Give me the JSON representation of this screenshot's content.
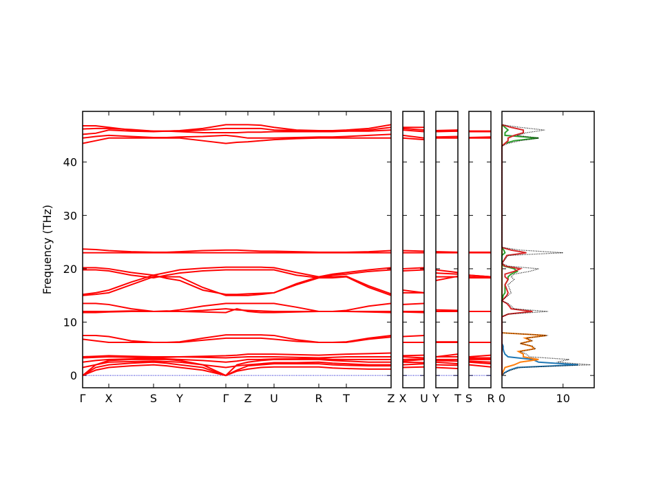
{
  "chart_data": [
    {
      "type": "band",
      "ylabel": "Frequency (THz)",
      "color": "#ff0000",
      "zero_line": true,
      "ylim": [
        -2.3,
        49.5
      ],
      "yticks": [
        0,
        10,
        20,
        30,
        40
      ],
      "xlim": [
        0,
        448
      ],
      "xticks": [
        {
          "value": 0,
          "label": "Γ"
        },
        {
          "value": 38,
          "label": "X"
        },
        {
          "value": 103,
          "label": "S"
        },
        {
          "value": 141,
          "label": "Y"
        },
        {
          "value": 208,
          "label": "Γ"
        },
        {
          "value": 240,
          "label": "Z"
        },
        {
          "value": 278,
          "label": "U"
        },
        {
          "value": 343,
          "label": "R"
        },
        {
          "value": 383,
          "label": "T"
        },
        {
          "value": 448,
          "label": "Z"
        }
      ],
      "x": [
        0,
        19,
        38,
        70.5,
        103,
        122,
        141,
        174.5,
        208,
        224,
        240,
        259,
        278,
        310.5,
        343,
        363,
        383,
        415.5,
        448
      ],
      "bands": [
        [
          0,
          1,
          1.5,
          1.8,
          2,
          1.8,
          1.5,
          1,
          0,
          0.8,
          1.2,
          1.5,
          1.6,
          1.6,
          1.6,
          1.4,
          1.3,
          1.2,
          1.2
        ],
        [
          0,
          1.5,
          2,
          2.3,
          2.5,
          2.3,
          2,
          1.5,
          0,
          1,
          1.8,
          2,
          2.2,
          2.2,
          2.2,
          2,
          1.9,
          1.8,
          1.8
        ],
        [
          0,
          2,
          2.8,
          3,
          3,
          3,
          2.8,
          2,
          0,
          2,
          2.5,
          2.8,
          3,
          3,
          3,
          2.8,
          2.7,
          2.5,
          2.5
        ],
        [
          1.5,
          2,
          2.5,
          2.6,
          2.7,
          2.6,
          2.5,
          2,
          1.5,
          1.8,
          2,
          2.2,
          2.4,
          2.4,
          2.5,
          2.3,
          2.2,
          2,
          2
        ],
        [
          2.5,
          2.8,
          3,
          3.1,
          3.2,
          3.1,
          3,
          2.8,
          2.5,
          2.7,
          3,
          3,
          3.1,
          3.1,
          3.2,
          3,
          3,
          3,
          3
        ],
        [
          3.3,
          3.4,
          3.5,
          3.4,
          3.3,
          3.4,
          3.5,
          3.4,
          3.3,
          3.4,
          3.5,
          3.5,
          3.5,
          3.4,
          3.3,
          3.4,
          3.5,
          3.5,
          3.5
        ],
        [
          3.5,
          3.6,
          3.7,
          3.6,
          3.5,
          3.5,
          3.5,
          3.6,
          3.7,
          3.8,
          4,
          4,
          4,
          3.9,
          3.8,
          3.9,
          4,
          4.1,
          4.2
        ],
        [
          6.8,
          6.5,
          6.2,
          6.2,
          6.2,
          6.2,
          6.2,
          6.6,
          7,
          7,
          7,
          7,
          6.8,
          6.4,
          6.2,
          6.2,
          6.2,
          6.8,
          7.2
        ],
        [
          7.5,
          7.5,
          7.3,
          6.5,
          6.2,
          6.2,
          6.3,
          7,
          7.6,
          7.6,
          7.6,
          7.6,
          7.5,
          6.7,
          6.2,
          6.2,
          6.3,
          7,
          7.5
        ],
        [
          11.8,
          11.8,
          11.9,
          12,
          12,
          12,
          12,
          11.9,
          11.8,
          12.5,
          12,
          11.8,
          11.8,
          11.9,
          12,
          12,
          12,
          11.9,
          11.8
        ],
        [
          12,
          12,
          12,
          12.1,
          12,
          12.1,
          12,
          12.2,
          12.5,
          12.3,
          12.2,
          12.1,
          12,
          12,
          12,
          12,
          12,
          12,
          12
        ],
        [
          13.5,
          13.5,
          13.3,
          12.5,
          12,
          12,
          12.3,
          13,
          13.5,
          13.5,
          13.5,
          13.5,
          13.5,
          12.8,
          12,
          12,
          12.2,
          13,
          13.5
        ],
        [
          15,
          15.2,
          15.5,
          17,
          18.5,
          18.5,
          18.5,
          16.5,
          15,
          15,
          15,
          15.2,
          15.5,
          17,
          18.3,
          18.3,
          18.5,
          16.5,
          15
        ],
        [
          15.2,
          15.5,
          16,
          17.5,
          18.8,
          18.2,
          17.8,
          16,
          15.2,
          15.2,
          15.3,
          15.4,
          15.5,
          17.2,
          18.5,
          18.5,
          18.6,
          16.8,
          15.3
        ],
        [
          19.8,
          19.8,
          19.6,
          18.8,
          18.3,
          18.8,
          19.2,
          19.6,
          19.8,
          19.8,
          19.8,
          19.8,
          19.8,
          18.8,
          18.3,
          18.8,
          19,
          19.5,
          19.8
        ],
        [
          20.2,
          20.2,
          20,
          19.3,
          18.8,
          19.3,
          19.8,
          20.1,
          20.3,
          20.3,
          20.3,
          20.3,
          20.2,
          19.3,
          18.5,
          19,
          19.3,
          19.8,
          20.2
        ],
        [
          23,
          23,
          23,
          23,
          23,
          23,
          23,
          23,
          23,
          23,
          23,
          23,
          23,
          23,
          23,
          23,
          23,
          23,
          23
        ],
        [
          23.7,
          23.6,
          23.4,
          23.2,
          23.1,
          23.1,
          23.2,
          23.4,
          23.5,
          23.5,
          23.4,
          23.3,
          23.3,
          23.2,
          23.1,
          23.1,
          23.1,
          23.2,
          23.4
        ],
        [
          43.5,
          44,
          44.5,
          44.5,
          44.5,
          44.5,
          44.5,
          44,
          43.5,
          43.7,
          43.8,
          44,
          44.2,
          44.4,
          44.5,
          44.5,
          44.5,
          44.5,
          44.5
        ],
        [
          44.5,
          44.8,
          45,
          44.8,
          44.6,
          44.6,
          44.7,
          44.8,
          45,
          44.8,
          44.5,
          44.5,
          44.5,
          44.6,
          44.7,
          44.7,
          44.8,
          45,
          45.2
        ],
        [
          45.2,
          45.4,
          46,
          45.8,
          45.7,
          45.8,
          45.7,
          45.5,
          45.5,
          45.5,
          45.6,
          45.6,
          45.7,
          45.7,
          45.7,
          45.7,
          45.8,
          45.8,
          46
        ],
        [
          46.2,
          46.3,
          46.3,
          46.1,
          45.8,
          45.8,
          45.8,
          46,
          46.3,
          46.3,
          46.3,
          46.3,
          46,
          45.9,
          45.8,
          45.8,
          45.8,
          46,
          46.5
        ],
        [
          46.8,
          46.8,
          46.5,
          46,
          45.8,
          45.8,
          45.9,
          46.3,
          47,
          47,
          47,
          46.9,
          46.5,
          46,
          45.9,
          45.9,
          46,
          46.3,
          47
        ]
      ]
    },
    {
      "type": "band",
      "color": "#ff0000",
      "zero_line": true,
      "ylim": [
        -2.3,
        49.5
      ],
      "yticks": [
        0,
        10,
        20,
        30,
        40
      ],
      "xlim": [
        0,
        1
      ],
      "xticks": [
        {
          "value": 0,
          "label": "X"
        },
        {
          "value": 1,
          "label": "U"
        }
      ],
      "x": [
        0,
        1
      ],
      "bands": [
        [
          1.5,
          1.6
        ],
        [
          2,
          2.2
        ],
        [
          2.7,
          3
        ],
        [
          2.5,
          2.4
        ],
        [
          3,
          3.1
        ],
        [
          3.5,
          3.3
        ],
        [
          3.7,
          3.8
        ],
        [
          6.2,
          6.2
        ],
        [
          7.3,
          7.5
        ],
        [
          11.9,
          11.8
        ],
        [
          12,
          12
        ],
        [
          13.3,
          13.5
        ],
        [
          15.5,
          15.5
        ],
        [
          16,
          15.5
        ],
        [
          19.6,
          19.8
        ],
        [
          20,
          20.2
        ],
        [
          23,
          23
        ],
        [
          23.4,
          23.3
        ],
        [
          44.5,
          44.2
        ],
        [
          45,
          44.5
        ],
        [
          46,
          45.7
        ],
        [
          46.3,
          46
        ],
        [
          46.5,
          46.5
        ]
      ]
    },
    {
      "type": "band",
      "color": "#ff0000",
      "zero_line": true,
      "ylim": [
        -2.3,
        49.5
      ],
      "yticks": [
        0,
        10,
        20,
        30,
        40
      ],
      "xlim": [
        0,
        1
      ],
      "xticks": [
        {
          "value": 0,
          "label": "Y"
        },
        {
          "value": 1,
          "label": "T"
        }
      ],
      "x": [
        0,
        1
      ],
      "bands": [
        [
          1.5,
          1.3
        ],
        [
          2,
          1.9
        ],
        [
          2.8,
          2.7
        ],
        [
          2.5,
          2.2
        ],
        [
          3,
          3
        ],
        [
          3.5,
          3.5
        ],
        [
          3.5,
          4
        ],
        [
          6.2,
          6.2
        ],
        [
          6.3,
          6.3
        ],
        [
          12,
          12
        ],
        [
          12,
          12
        ],
        [
          12.3,
          12.2
        ],
        [
          17.8,
          18.6
        ],
        [
          18.5,
          18.5
        ],
        [
          19.2,
          19
        ],
        [
          19.8,
          19.3
        ],
        [
          23,
          23
        ],
        [
          23.2,
          23.1
        ],
        [
          44.5,
          44.5
        ],
        [
          44.7,
          44.8
        ],
        [
          45.7,
          45.8
        ],
        [
          45.8,
          45.8
        ],
        [
          45.9,
          46
        ]
      ]
    },
    {
      "type": "band",
      "color": "#ff0000",
      "zero_line": true,
      "ylim": [
        -2.3,
        49.5
      ],
      "yticks": [
        0,
        10,
        20,
        30,
        40
      ],
      "xlim": [
        0,
        1
      ],
      "xticks": [
        {
          "value": 0,
          "label": "S"
        },
        {
          "value": 1,
          "label": "R"
        }
      ],
      "x": [
        0,
        1
      ],
      "bands": [
        [
          2,
          1.6
        ],
        [
          2.5,
          2.2
        ],
        [
          3,
          3
        ],
        [
          2.7,
          2.5
        ],
        [
          3.2,
          3.2
        ],
        [
          3.3,
          3.3
        ],
        [
          3.5,
          3.8
        ],
        [
          6.2,
          6.2
        ],
        [
          6.2,
          6.2
        ],
        [
          12,
          12
        ],
        [
          12,
          12
        ],
        [
          12,
          12
        ],
        [
          18.5,
          18.3
        ],
        [
          18.8,
          18.5
        ],
        [
          18.3,
          18.3
        ],
        [
          18.8,
          18.5
        ],
        [
          23,
          23
        ],
        [
          23.1,
          23.1
        ],
        [
          44.5,
          44.5
        ],
        [
          44.6,
          44.7
        ],
        [
          45.7,
          45.7
        ],
        [
          45.8,
          45.8
        ],
        [
          45.8,
          45.8
        ]
      ]
    },
    {
      "type": "dos",
      "ylim": [
        -2.3,
        49.5
      ],
      "yticks": [
        0,
        10,
        20,
        30,
        40
      ],
      "xlim": [
        0,
        15.1
      ],
      "xticks": [
        0,
        10
      ],
      "frequencies": [
        0,
        0.5,
        1,
        1.5,
        2,
        2.5,
        3,
        3.5,
        4,
        4.5,
        5,
        5.5,
        6,
        6.5,
        7,
        7.5,
        8,
        11,
        11.5,
        12,
        12.5,
        13,
        13.5,
        14,
        15,
        15.5,
        17,
        18,
        18.5,
        19,
        19.5,
        20,
        20.5,
        21,
        22.5,
        23,
        23.5,
        24,
        43,
        43.5,
        44,
        44.5,
        45,
        45.5,
        46,
        46.5,
        47
      ],
      "series": [
        {
          "color": "#1f77b4",
          "values": [
            0,
            0.4,
            1.2,
            2.5,
            12.5,
            6,
            5,
            1,
            0.5,
            0.3,
            0.2,
            0.2,
            0,
            0,
            0,
            0,
            0,
            0,
            0,
            0,
            0,
            0,
            0,
            0,
            0,
            0,
            0,
            0,
            0,
            0,
            0,
            0,
            0,
            0,
            0,
            0,
            0,
            0,
            0,
            0,
            0,
            0,
            0,
            0,
            0,
            0,
            0
          ]
        },
        {
          "color": "#ff7f0e",
          "values": [
            0,
            0.1,
            0.3,
            0.5,
            2,
            3,
            6,
            3.5,
            3.5,
            2.7,
            5.3,
            4.8,
            3,
            4.8,
            3.8,
            7.3,
            0,
            0,
            0,
            0,
            0,
            0,
            0,
            0,
            0,
            0,
            0,
            0,
            0,
            0,
            0,
            0,
            0,
            0,
            0,
            0,
            0,
            0,
            0,
            0,
            0,
            0,
            0,
            0,
            0,
            0,
            0
          ]
        },
        {
          "color": "#2ca02c",
          "values": [
            0,
            0,
            0,
            0,
            0,
            0,
            0,
            0,
            0,
            0,
            0,
            0,
            0,
            0,
            0,
            0,
            0,
            0,
            0,
            0,
            0,
            0,
            0,
            0,
            0.2,
            0.5,
            0.5,
            1,
            1,
            1.5,
            2.5,
            2,
            0.3,
            0,
            0,
            0.5,
            0.3,
            0,
            0,
            0.5,
            2,
            6,
            0.5,
            0.5,
            1,
            0.5,
            0
          ]
        },
        {
          "color": "#d62728",
          "values": [
            0,
            0,
            0,
            0,
            0,
            0,
            0,
            0,
            0,
            0,
            0,
            0,
            0,
            0,
            0,
            0,
            0,
            0,
            1,
            5,
            1.5,
            1.2,
            0.8,
            0,
            0.8,
            1,
            0.5,
            1,
            0.5,
            0.5,
            2,
            3,
            0.5,
            0,
            0.8,
            4,
            1.5,
            0,
            0,
            0.5,
            1,
            1,
            2,
            3.5,
            3.5,
            1.5,
            0
          ]
        },
        {
          "color": "#000000",
          "style": "dotted",
          "values": [
            0,
            0.5,
            1.5,
            3,
            14.5,
            9,
            11,
            4.5,
            4,
            3,
            5.5,
            5,
            3,
            5,
            4,
            7.5,
            0,
            0,
            1,
            7.5,
            2,
            1.5,
            1,
            0,
            1,
            1.5,
            1,
            2,
            1.5,
            2,
            4.5,
            6,
            1,
            0,
            1,
            10,
            3,
            0,
            0,
            1,
            3,
            6,
            2.5,
            4,
            7,
            3,
            0
          ]
        }
      ]
    }
  ]
}
